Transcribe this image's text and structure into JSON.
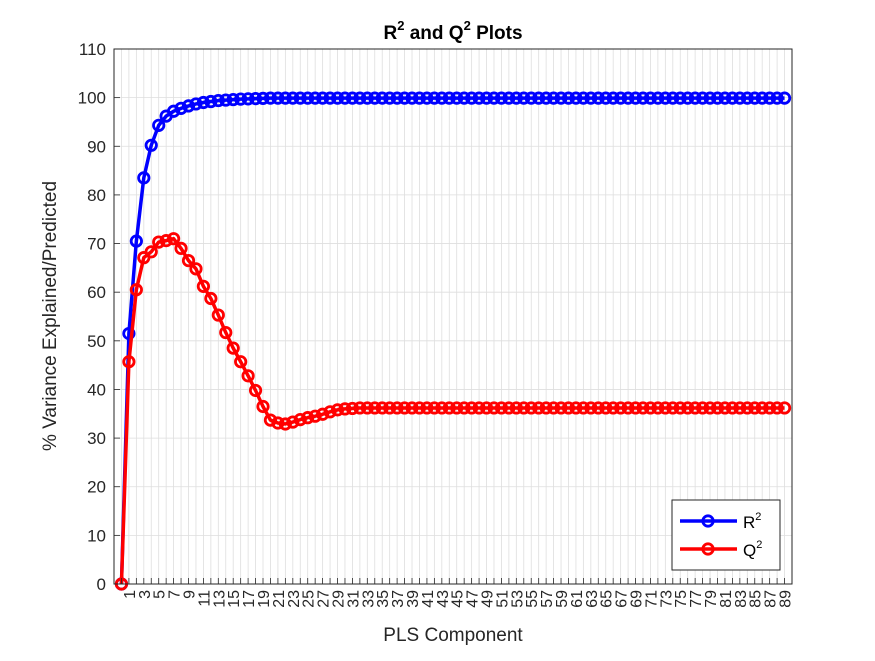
{
  "chart_data": {
    "type": "line",
    "title": "R",
    "title_sup1": "2",
    "title_mid": " and Q",
    "title_sup2": "2",
    "title_end": " Plots",
    "xlabel": "PLS Component",
    "ylabel": "% Variance Explained/Predicted",
    "xlim": [
      -1,
      90
    ],
    "ylim": [
      0,
      110
    ],
    "yticks": [
      0,
      10,
      20,
      30,
      40,
      50,
      60,
      70,
      80,
      90,
      100,
      110
    ],
    "xticks_labeled": [
      1,
      3,
      5,
      7,
      9,
      11,
      13,
      15,
      17,
      19,
      21,
      23,
      25,
      27,
      29,
      31,
      33,
      35,
      37,
      39,
      41,
      43,
      45,
      47,
      49,
      51,
      53,
      55,
      57,
      59,
      61,
      63,
      65,
      67,
      69,
      71,
      73,
      75,
      77,
      79,
      81,
      83,
      85,
      87,
      89
    ],
    "xtick_labels": [
      "1",
      "3",
      "5",
      "7",
      "9",
      "11",
      "13",
      "15",
      "17",
      "19",
      "21",
      "23",
      "25",
      "27",
      "29",
      "31",
      "33",
      "35",
      "37",
      "39",
      "41",
      "43",
      "45",
      "47",
      "49",
      "51",
      "53",
      "55",
      "57",
      "59",
      "61",
      "63",
      "65",
      "67",
      "69",
      "71",
      "73",
      "75",
      "77",
      "79",
      "81",
      "83",
      "85",
      "87",
      "89"
    ],
    "grid": true,
    "legend": "bottom-right",
    "series": [
      {
        "name": "R",
        "sup": "2",
        "color": "#0000ff",
        "marker": "circle",
        "x": [
          0,
          1,
          2,
          3,
          4,
          5,
          6,
          7,
          8,
          9,
          10,
          11,
          12,
          13,
          14,
          15,
          16,
          17,
          18,
          19,
          20,
          21,
          22,
          23,
          24,
          25,
          26,
          27,
          28,
          29,
          30,
          31,
          32,
          33,
          34,
          35,
          36,
          37,
          38,
          39,
          40,
          41,
          42,
          43,
          44,
          45,
          46,
          47,
          48,
          49,
          50,
          51,
          52,
          53,
          54,
          55,
          56,
          57,
          58,
          59,
          60,
          61,
          62,
          63,
          64,
          65,
          66,
          67,
          68,
          69,
          70,
          71,
          72,
          73,
          74,
          75,
          76,
          77,
          78,
          79,
          80,
          81,
          82,
          83,
          84,
          85,
          86,
          87,
          88,
          89
        ],
        "values": [
          0,
          51.5,
          70.5,
          83.5,
          90.2,
          94.3,
          96.2,
          97.2,
          97.8,
          98.3,
          98.7,
          99.0,
          99.2,
          99.4,
          99.5,
          99.6,
          99.7,
          99.75,
          99.8,
          99.85,
          99.9,
          99.9,
          99.9,
          99.9,
          99.9,
          99.9,
          99.9,
          99.9,
          99.9,
          99.9,
          99.9,
          99.9,
          99.9,
          99.9,
          99.9,
          99.9,
          99.9,
          99.9,
          99.9,
          99.9,
          99.9,
          99.9,
          99.9,
          99.9,
          99.9,
          99.9,
          99.9,
          99.9,
          99.9,
          99.9,
          99.9,
          99.9,
          99.9,
          99.9,
          99.9,
          99.9,
          99.9,
          99.9,
          99.9,
          99.9,
          99.9,
          99.9,
          99.9,
          99.9,
          99.9,
          99.9,
          99.9,
          99.9,
          99.9,
          99.9,
          99.9,
          99.9,
          99.9,
          99.9,
          99.9,
          99.9,
          99.9,
          99.9,
          99.9,
          99.9,
          99.9,
          99.9,
          99.9,
          99.9,
          99.9,
          99.9,
          99.9,
          99.9,
          99.9,
          99.9
        ]
      },
      {
        "name": "Q",
        "sup": "2",
        "color": "#ff0000",
        "marker": "circle",
        "x": [
          0,
          1,
          2,
          3,
          4,
          5,
          6,
          7,
          8,
          9,
          10,
          11,
          12,
          13,
          14,
          15,
          16,
          17,
          18,
          19,
          20,
          21,
          22,
          23,
          24,
          25,
          26,
          27,
          28,
          29,
          30,
          31,
          32,
          33,
          34,
          35,
          36,
          37,
          38,
          39,
          40,
          41,
          42,
          43,
          44,
          45,
          46,
          47,
          48,
          49,
          50,
          51,
          52,
          53,
          54,
          55,
          56,
          57,
          58,
          59,
          60,
          61,
          62,
          63,
          64,
          65,
          66,
          67,
          68,
          69,
          70,
          71,
          72,
          73,
          74,
          75,
          76,
          77,
          78,
          79,
          80,
          81,
          82,
          83,
          84,
          85,
          86,
          87,
          88,
          89
        ],
        "values": [
          0,
          45.7,
          60.5,
          67.1,
          68.3,
          70.3,
          70.6,
          71.0,
          69.0,
          66.5,
          64.8,
          61.2,
          58.7,
          55.3,
          51.7,
          48.5,
          45.7,
          42.8,
          39.8,
          36.5,
          33.7,
          33.1,
          32.9,
          33.3,
          33.8,
          34.2,
          34.5,
          34.9,
          35.4,
          35.8,
          36.0,
          36.1,
          36.2,
          36.2,
          36.2,
          36.2,
          36.2,
          36.2,
          36.2,
          36.2,
          36.2,
          36.2,
          36.2,
          36.2,
          36.2,
          36.2,
          36.2,
          36.2,
          36.2,
          36.2,
          36.2,
          36.2,
          36.2,
          36.2,
          36.2,
          36.2,
          36.2,
          36.2,
          36.2,
          36.2,
          36.2,
          36.2,
          36.2,
          36.2,
          36.2,
          36.2,
          36.2,
          36.2,
          36.2,
          36.2,
          36.2,
          36.2,
          36.2,
          36.2,
          36.2,
          36.2,
          36.2,
          36.2,
          36.2,
          36.2,
          36.2,
          36.2,
          36.2,
          36.2,
          36.2,
          36.2,
          36.2,
          36.2,
          36.2,
          36.2
        ]
      }
    ]
  }
}
